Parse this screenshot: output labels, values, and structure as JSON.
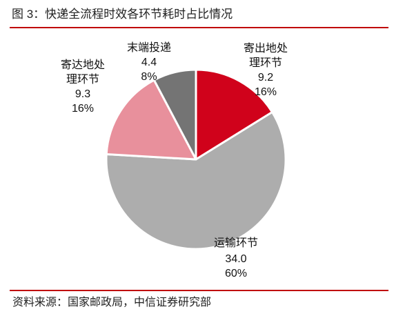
{
  "figure": {
    "title": "图 3：快递全流程时效各环节耗时占比情况",
    "source": "资料来源：国家邮政局，中信证券研究部"
  },
  "chart_data": {
    "type": "pie",
    "title": "快递全流程时效各环节耗时占比情况",
    "categories": [
      "寄出地处理环节",
      "运输环节",
      "寄达地处理环节",
      "末端投递"
    ],
    "values": [
      9.2,
      34.0,
      9.3,
      4.4
    ],
    "percentages": [
      "16%",
      "60%",
      "16%",
      "8%"
    ],
    "colors": [
      "#d0021b",
      "#adadad",
      "#e8909c",
      "#747474"
    ],
    "start_angle": "12 o'clock, clockwise",
    "legend": "none (data labels on slices)"
  },
  "labels": [
    {
      "line1": "寄出地处",
      "line2": "理环节",
      "value": "9.2",
      "pct": "16%"
    },
    {
      "line1": "运输环节",
      "line2": "",
      "value": "34.0",
      "pct": "60%"
    },
    {
      "line1": "寄达地处",
      "line2": "理环节",
      "value": "9.3",
      "pct": "16%"
    },
    {
      "line1": "末端投递",
      "line2": "",
      "value": "4.4",
      "pct": "8%"
    }
  ]
}
